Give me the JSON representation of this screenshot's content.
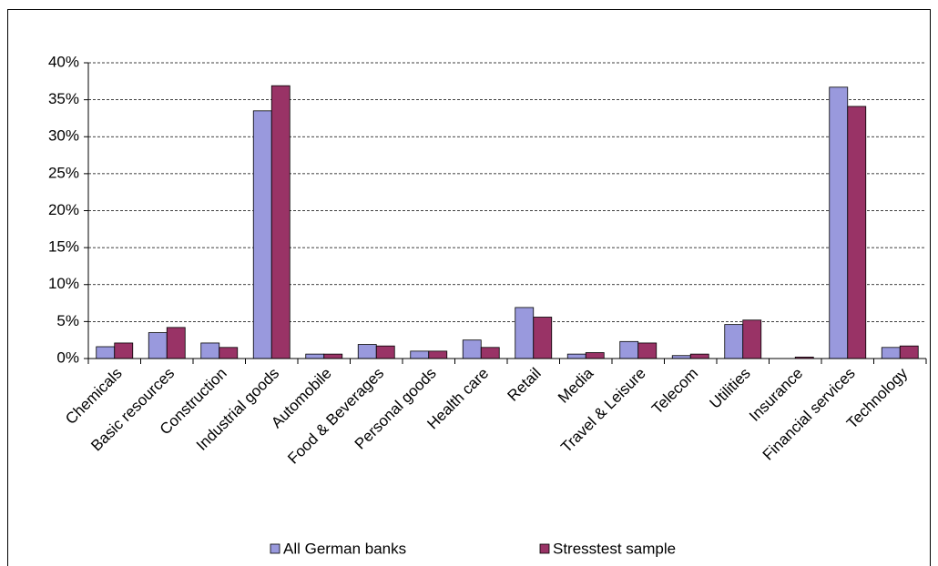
{
  "chart_data": {
    "type": "bar",
    "categories": [
      "Chemicals",
      "Basic resources",
      "Construction",
      "Industrial goods",
      "Automobile",
      "Food & Beverages",
      "Personal goods",
      "Health care",
      "Retail",
      "Media",
      "Travel & Leisure",
      "Telecom",
      "Utilities",
      "Insurance",
      "Financial services",
      "Technology"
    ],
    "series": [
      {
        "name": "All German banks",
        "color": "#9999dd",
        "values": [
          1.6,
          3.5,
          2.1,
          33.5,
          0.6,
          1.9,
          1.0,
          2.5,
          6.9,
          0.6,
          2.3,
          0.4,
          4.6,
          0.0,
          36.7,
          1.5
        ]
      },
      {
        "name": "Stresstest sample",
        "color": "#993366",
        "values": [
          2.1,
          4.2,
          1.5,
          36.9,
          0.6,
          1.7,
          1.0,
          1.5,
          5.6,
          0.8,
          2.1,
          0.6,
          5.2,
          0.2,
          34.1,
          1.7
        ]
      }
    ],
    "ylim": [
      0,
      40
    ],
    "yticks": [
      {
        "value": 0,
        "label": "0%"
      },
      {
        "value": 5,
        "label": "5%"
      },
      {
        "value": 10,
        "label": "10%"
      },
      {
        "value": 15,
        "label": "15%"
      },
      {
        "value": 20,
        "label": "20%"
      },
      {
        "value": 25,
        "label": "25%"
      },
      {
        "value": 30,
        "label": "30%"
      },
      {
        "value": 35,
        "label": "35%"
      },
      {
        "value": 40,
        "label": "40%"
      }
    ],
    "grid": true,
    "legend": "bottom"
  }
}
